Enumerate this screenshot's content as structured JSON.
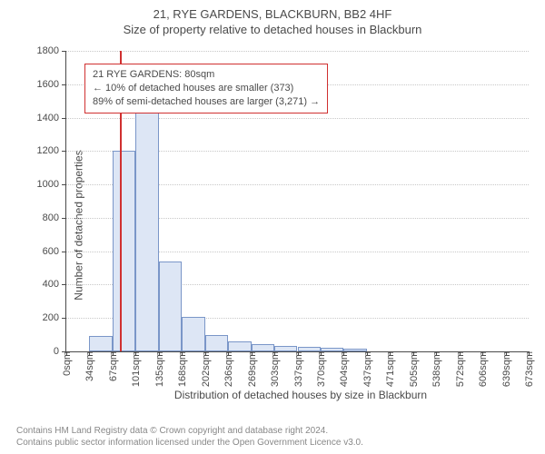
{
  "header": {
    "address": "21, RYE GARDENS, BLACKBURN, BB2 4HF",
    "subtitle": "Size of property relative to detached houses in Blackburn"
  },
  "chart": {
    "type": "histogram",
    "ylabel": "Number of detached properties",
    "xlabel": "Distribution of detached houses by size in Blackburn",
    "ylim": [
      0,
      1800
    ],
    "ytick_step": 200,
    "yticks": [
      0,
      200,
      400,
      600,
      800,
      1000,
      1200,
      1400,
      1600,
      1800
    ],
    "xtick_labels": [
      "0sqm",
      "34sqm",
      "67sqm",
      "101sqm",
      "135sqm",
      "168sqm",
      "202sqm",
      "236sqm",
      "269sqm",
      "303sqm",
      "337sqm",
      "370sqm",
      "404sqm",
      "437sqm",
      "471sqm",
      "505sqm",
      "538sqm",
      "572sqm",
      "606sqm",
      "639sqm",
      "673sqm"
    ],
    "bars": [
      {
        "i": 0,
        "value": 0
      },
      {
        "i": 1,
        "value": 90
      },
      {
        "i": 2,
        "value": 1200
      },
      {
        "i": 3,
        "value": 1630
      },
      {
        "i": 4,
        "value": 540
      },
      {
        "i": 5,
        "value": 205
      },
      {
        "i": 6,
        "value": 100
      },
      {
        "i": 7,
        "value": 60
      },
      {
        "i": 8,
        "value": 45
      },
      {
        "i": 9,
        "value": 35
      },
      {
        "i": 10,
        "value": 25
      },
      {
        "i": 11,
        "value": 20
      },
      {
        "i": 12,
        "value": 15
      },
      {
        "i": 13,
        "value": 0
      },
      {
        "i": 14,
        "value": 0
      },
      {
        "i": 15,
        "value": 0
      },
      {
        "i": 16,
        "value": 0
      },
      {
        "i": 17,
        "value": 0
      },
      {
        "i": 18,
        "value": 0
      },
      {
        "i": 19,
        "value": 0
      }
    ],
    "bar_fill": "#dde6f5",
    "bar_border": "#7a96c8",
    "grid_color": "#c8c8c8",
    "axis_color": "#4a4a4a",
    "background_color": "#ffffff",
    "marker": {
      "position_sqm": 80,
      "color": "#d03030"
    },
    "callout": {
      "line1": "21 RYE GARDENS: 80sqm",
      "line2": "← 10% of detached houses are smaller (373)",
      "line3": "89% of semi-detached houses are larger (3,271) →",
      "border_color": "#d03030"
    },
    "label_fontsize": 12,
    "tick_fontsize": 11,
    "title_fontsize": 13
  },
  "footer": {
    "line1": "Contains HM Land Registry data © Crown copyright and database right 2024.",
    "line2": "Contains public sector information licensed under the Open Government Licence v3.0."
  }
}
